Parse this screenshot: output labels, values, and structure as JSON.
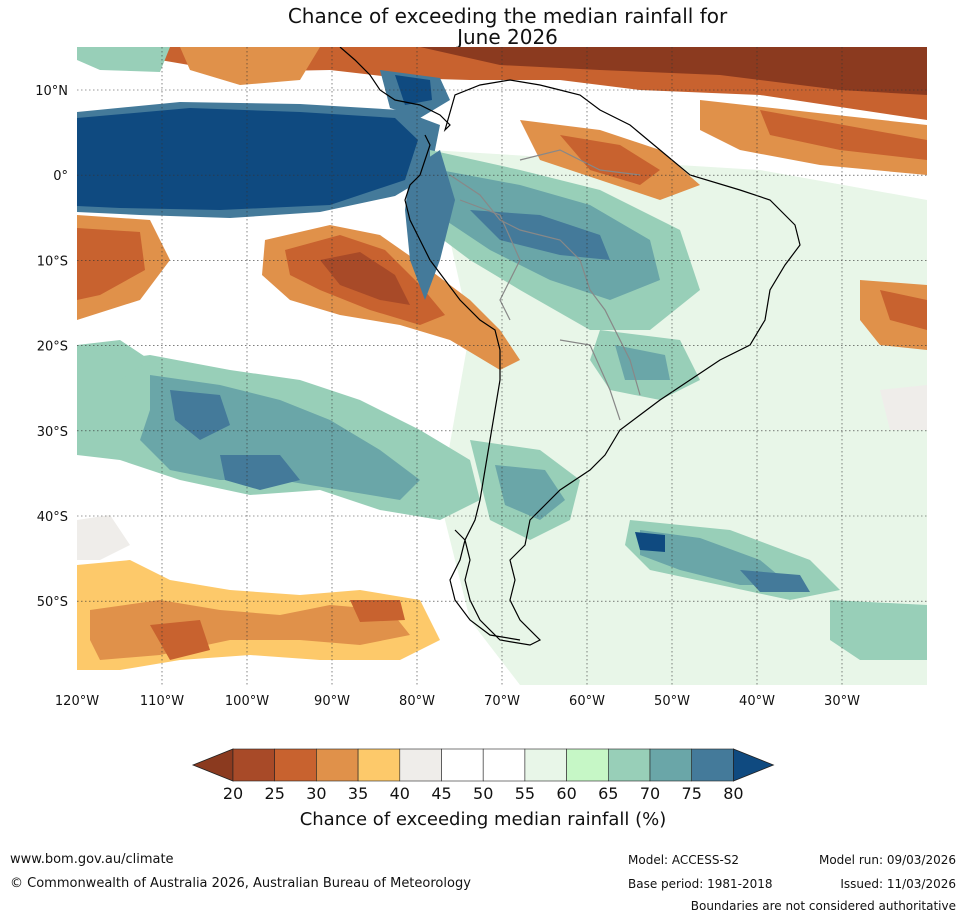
{
  "title": {
    "line1": "Chance of exceeding the median rainfall for",
    "line2": "June 2026"
  },
  "map": {
    "lat_labels": [
      "10°N",
      "0°",
      "10°S",
      "20°S",
      "30°S",
      "40°S",
      "50°S"
    ],
    "lon_labels": [
      "120°W",
      "110°W",
      "100°W",
      "90°W",
      "80°W",
      "70°W",
      "60°W",
      "50°W",
      "40°W",
      "30°W"
    ]
  },
  "colorbar": {
    "ticks": [
      "20",
      "25",
      "30",
      "35",
      "40",
      "45",
      "50",
      "55",
      "60",
      "65",
      "70",
      "75",
      "80"
    ],
    "title": "Chance of exceeding median rainfall (%)",
    "colors": {
      "lt20": "#8b3a1f",
      "c20_25": "#a84a28",
      "c25_30": "#c8622f",
      "c30_35": "#e0914a",
      "c35_40": "#fdc96a",
      "c40_45": "#efedea",
      "c45_50": "#ffffff",
      "c50_55": "#ffffff",
      "c55_60": "#e8f6e8",
      "c60_65": "#c6f7c6",
      "c65_70": "#98cfb8",
      "c70_75": "#6aa6a8",
      "c75_80": "#447a9a",
      "gt80": "#0f4a80"
    }
  },
  "footer": {
    "url": "www.bom.gov.au/climate",
    "copyright": "© Commonwealth of Australia 2026, Australian Bureau of Meteorology",
    "model": "Model: ACCESS-S2",
    "base_period": "Base period: 1981-2018",
    "model_run": "Model run: 09/03/2026",
    "issued": "Issued: 11/03/2026",
    "disclaimer": "Boundaries are not considered authoritative"
  }
}
